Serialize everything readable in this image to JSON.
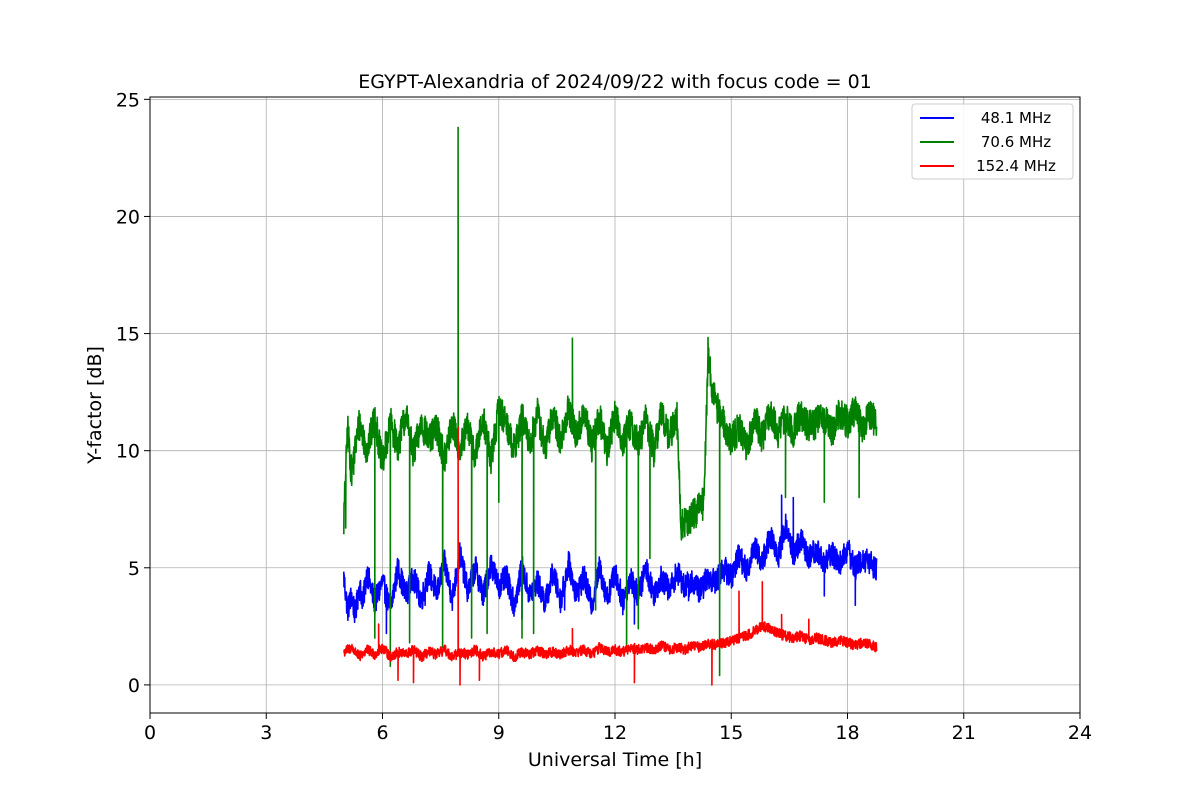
{
  "chart_data": {
    "type": "line",
    "title": "EGYPT-Alexandria of 2024/09/22 with focus code = 01",
    "xlabel": "Universal Time [h]",
    "ylabel": "Y-factor [dB]",
    "xlim": [
      0,
      24
    ],
    "ylim": [
      -1.2,
      25.1
    ],
    "xticks": [
      0,
      3,
      6,
      9,
      12,
      15,
      18,
      21,
      24
    ],
    "yticks": [
      0,
      5,
      10,
      15,
      20,
      25
    ],
    "grid": true,
    "legend_position": "top-right",
    "series": [
      {
        "name": "48.1 MHz",
        "color": "#0000ff",
        "x": [
          5.0,
          5.1,
          5.2,
          5.3,
          5.4,
          5.5,
          5.6,
          5.8,
          6.0,
          6.2,
          6.4,
          6.6,
          6.8,
          7.0,
          7.2,
          7.4,
          7.6,
          7.8,
          8.0,
          8.2,
          8.4,
          8.6,
          8.8,
          9.0,
          9.2,
          9.4,
          9.6,
          9.8,
          10.0,
          10.2,
          10.4,
          10.6,
          10.8,
          11.0,
          11.2,
          11.4,
          11.6,
          11.8,
          12.0,
          12.2,
          12.4,
          12.6,
          12.8,
          13.0,
          13.2,
          13.4,
          13.6,
          13.8,
          14.0,
          14.2,
          14.4,
          14.6,
          14.8,
          15.0,
          15.2,
          15.4,
          15.6,
          15.8,
          16.0,
          16.2,
          16.4,
          16.6,
          16.8,
          17.0,
          17.2,
          17.4,
          17.6,
          17.8,
          18.0,
          18.2,
          18.4,
          18.6,
          18.75
        ],
        "values": [
          4.6,
          3.2,
          3.8,
          3.0,
          4.2,
          3.6,
          4.8,
          3.5,
          4.4,
          3.2,
          5.0,
          3.8,
          4.6,
          3.6,
          4.8,
          3.9,
          5.2,
          3.7,
          5.6,
          4.0,
          5.0,
          3.8,
          5.2,
          4.2,
          4.6,
          3.4,
          5.0,
          3.8,
          4.4,
          3.5,
          4.8,
          3.6,
          5.2,
          3.9,
          4.6,
          3.4,
          5.0,
          3.7,
          4.8,
          3.6,
          4.6,
          3.8,
          5.0,
          3.9,
          4.6,
          4.0,
          4.8,
          4.2,
          4.4,
          4.0,
          4.6,
          4.4,
          5.0,
          4.6,
          5.6,
          4.8,
          6.0,
          5.2,
          6.4,
          5.4,
          6.8,
          5.6,
          6.2,
          5.4,
          5.8,
          5.2,
          5.6,
          5.2,
          5.8,
          5.0,
          5.4,
          5.2,
          5.0
        ],
        "spikes": [
          [
            6.1,
            2.2
          ],
          [
            7.1,
            3.4
          ],
          [
            9.6,
            2.8
          ],
          [
            10.7,
            3.2
          ],
          [
            12.2,
            3.0
          ],
          [
            12.5,
            2.6
          ],
          [
            13.9,
            3.6
          ],
          [
            16.3,
            8.1
          ],
          [
            16.6,
            8.0
          ],
          [
            17.4,
            3.8
          ],
          [
            18.2,
            3.4
          ]
        ]
      },
      {
        "name": "70.6 MHz",
        "color": "#008000",
        "x": [
          5.0,
          5.1,
          5.2,
          5.4,
          5.6,
          5.8,
          6.0,
          6.2,
          6.4,
          6.6,
          6.8,
          7.0,
          7.2,
          7.4,
          7.6,
          7.8,
          8.0,
          8.2,
          8.4,
          8.6,
          8.8,
          9.0,
          9.2,
          9.4,
          9.6,
          9.8,
          10.0,
          10.2,
          10.4,
          10.6,
          10.8,
          11.0,
          11.2,
          11.4,
          11.6,
          11.8,
          12.0,
          12.2,
          12.4,
          12.6,
          12.8,
          13.0,
          13.2,
          13.4,
          13.6,
          13.7,
          13.9,
          14.1,
          14.3,
          14.4,
          14.5,
          14.6,
          14.8,
          15.0,
          15.2,
          15.4,
          15.6,
          15.8,
          16.0,
          16.2,
          16.4,
          16.6,
          16.8,
          17.0,
          17.2,
          17.4,
          17.6,
          17.8,
          18.0,
          18.2,
          18.4,
          18.6,
          18.75
        ],
        "values": [
          7.0,
          11.0,
          9.0,
          11.2,
          10.0,
          11.4,
          9.4,
          11.2,
          10.2,
          11.6,
          9.8,
          11.2,
          10.4,
          11.0,
          9.6,
          11.2,
          10.0,
          11.0,
          9.8,
          11.4,
          9.6,
          11.8,
          11.2,
          10.0,
          11.4,
          10.2,
          11.6,
          10.0,
          11.6,
          10.4,
          11.8,
          10.6,
          11.6,
          10.2,
          11.4,
          10.0,
          11.6,
          10.4,
          11.2,
          10.2,
          11.4,
          10.0,
          11.6,
          10.6,
          11.4,
          6.8,
          7.0,
          7.4,
          7.8,
          14.2,
          12.8,
          12.0,
          11.2,
          10.4,
          11.0,
          10.2,
          11.4,
          10.6,
          11.6,
          10.8,
          11.4,
          10.8,
          11.6,
          11.0,
          11.2,
          11.4,
          10.8,
          11.6,
          11.2,
          11.8,
          11.0,
          11.6,
          11.0
        ],
        "spikes": [
          [
            5.05,
            6.7
          ],
          [
            5.8,
            2.0
          ],
          [
            6.2,
            0.8
          ],
          [
            6.7,
            1.8
          ],
          [
            7.55,
            1.6
          ],
          [
            7.95,
            23.8
          ],
          [
            8.3,
            2.0
          ],
          [
            8.7,
            2.2
          ],
          [
            9.0,
            7.8
          ],
          [
            9.6,
            2.0
          ],
          [
            9.9,
            2.2
          ],
          [
            10.9,
            14.8
          ],
          [
            11.5,
            3.2
          ],
          [
            12.3,
            1.6
          ],
          [
            12.6,
            2.4
          ],
          [
            12.9,
            5.4
          ],
          [
            14.4,
            14.8
          ],
          [
            14.7,
            0.4
          ],
          [
            16.4,
            8.0
          ],
          [
            17.4,
            7.8
          ],
          [
            18.3,
            8.0
          ]
        ]
      },
      {
        "name": "152.4 MHz",
        "color": "#ff0000",
        "x": [
          5.0,
          5.2,
          5.4,
          5.6,
          5.8,
          6.0,
          6.2,
          6.4,
          6.6,
          6.8,
          7.0,
          7.2,
          7.4,
          7.6,
          7.8,
          8.0,
          8.2,
          8.4,
          8.6,
          8.8,
          9.0,
          9.2,
          9.4,
          9.6,
          9.8,
          10.0,
          10.2,
          10.4,
          10.6,
          10.8,
          11.0,
          11.2,
          11.4,
          11.6,
          11.8,
          12.0,
          12.2,
          12.4,
          12.6,
          12.8,
          13.0,
          13.2,
          13.4,
          13.6,
          13.8,
          14.0,
          14.2,
          14.4,
          14.6,
          14.8,
          15.0,
          15.2,
          15.4,
          15.6,
          15.8,
          16.0,
          16.2,
          16.4,
          16.6,
          16.8,
          17.0,
          17.2,
          17.4,
          17.6,
          17.8,
          18.0,
          18.2,
          18.4,
          18.6,
          18.75
        ],
        "values": [
          1.4,
          1.6,
          1.2,
          1.5,
          1.3,
          1.6,
          1.2,
          1.4,
          1.3,
          1.5,
          1.2,
          1.4,
          1.3,
          1.5,
          1.2,
          1.4,
          1.3,
          1.5,
          1.2,
          1.4,
          1.3,
          1.5,
          1.2,
          1.4,
          1.3,
          1.5,
          1.3,
          1.4,
          1.3,
          1.5,
          1.4,
          1.5,
          1.3,
          1.6,
          1.4,
          1.5,
          1.4,
          1.6,
          1.5,
          1.6,
          1.5,
          1.7,
          1.5,
          1.6,
          1.5,
          1.7,
          1.6,
          1.8,
          1.7,
          1.8,
          1.9,
          2.0,
          2.1,
          2.3,
          2.5,
          2.4,
          2.2,
          2.1,
          2.0,
          2.1,
          1.9,
          2.0,
          1.9,
          1.8,
          1.9,
          1.8,
          1.7,
          1.8,
          1.7,
          1.6
        ],
        "spikes": [
          [
            5.9,
            2.6
          ],
          [
            6.4,
            0.2
          ],
          [
            6.8,
            0.1
          ],
          [
            7.95,
            11.0
          ],
          [
            8.0,
            0.0
          ],
          [
            8.5,
            0.2
          ],
          [
            10.9,
            2.4
          ],
          [
            12.5,
            0.1
          ],
          [
            14.5,
            0.0
          ],
          [
            15.2,
            4.0
          ],
          [
            15.8,
            4.4
          ],
          [
            16.3,
            3.0
          ],
          [
            17.0,
            2.8
          ]
        ]
      }
    ]
  }
}
